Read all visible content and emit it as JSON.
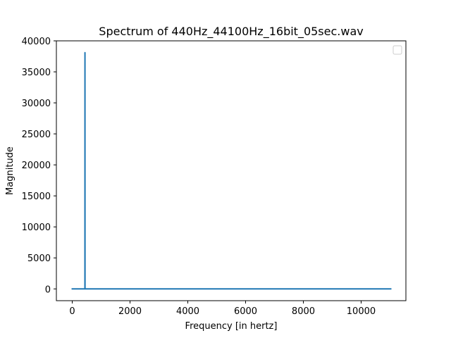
{
  "chart_data": {
    "type": "line",
    "title": "Spectrum of 440Hz_44100Hz_16bit_05sec.wav",
    "xlabel": "Frequency [in hertz]",
    "ylabel": "Magnitude",
    "xlim": [
      -550,
      11550
    ],
    "ylim": [
      -1900,
      40000
    ],
    "xticks": [
      0,
      2000,
      4000,
      6000,
      8000,
      10000
    ],
    "yticks": [
      0,
      5000,
      10000,
      15000,
      20000,
      25000,
      30000,
      35000,
      40000
    ],
    "grid": false,
    "legend": {
      "placement": "upper right",
      "entries": []
    },
    "series": [
      {
        "color": "#1f77b4",
        "x": [
          0,
          438,
          440,
          440,
          442,
          11025
        ],
        "y": [
          0,
          0,
          38100,
          38100,
          0,
          0
        ]
      }
    ]
  }
}
